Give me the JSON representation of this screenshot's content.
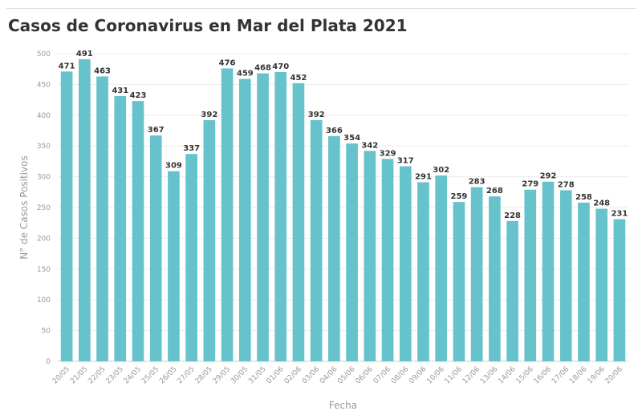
{
  "title": "Casos de Coronavirus en Mar del Plata 2021",
  "colors": {
    "bar": "#66c2cb",
    "grid": "#ebebeb",
    "axis": "#999999",
    "label": "#333333"
  },
  "chart_data": {
    "type": "bar",
    "title": "Casos de Coronavirus en Mar del Plata 2021",
    "xlabel": "Fecha",
    "ylabel": "N° de Casos Positivos",
    "ylim": [
      0,
      500
    ],
    "yticks": [
      0,
      50,
      100,
      150,
      200,
      250,
      300,
      350,
      400,
      450,
      500
    ],
    "grid": true,
    "categories": [
      "20/05",
      "21/05",
      "22/05",
      "23/05",
      "24/05",
      "25/05",
      "26/05",
      "27/05",
      "28/05",
      "29/05",
      "30/05",
      "31/05",
      "01/06",
      "02/06",
      "03/06",
      "04/06",
      "05/06",
      "06/06",
      "07/06",
      "08/06",
      "09/06",
      "10/06",
      "11/06",
      "12/06",
      "13/06",
      "14/06",
      "15/06",
      "16/06",
      "17/06",
      "18/06",
      "19/06",
      "20/06"
    ],
    "values": [
      471,
      491,
      463,
      431,
      423,
      367,
      309,
      337,
      392,
      476,
      459,
      468,
      470,
      452,
      392,
      366,
      354,
      342,
      329,
      317,
      291,
      302,
      259,
      283,
      268,
      228,
      279,
      292,
      278,
      258,
      248,
      231
    ]
  }
}
